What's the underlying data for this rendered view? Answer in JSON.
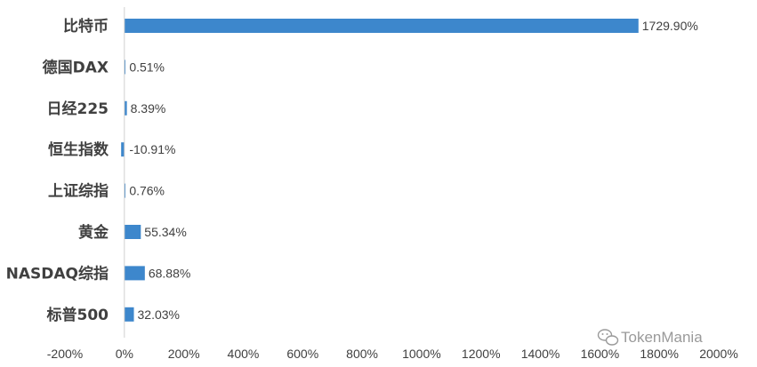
{
  "chart_data": {
    "type": "bar",
    "orientation": "horizontal",
    "categories": [
      "比特币",
      "德国DAX",
      "日经225",
      "恒生指数",
      "上证综指",
      "黄金",
      "NASDAQ综指",
      "标普500"
    ],
    "values": [
      1729.9,
      0.51,
      8.39,
      -10.91,
      0.76,
      55.34,
      68.88,
      32.03
    ],
    "data_labels": [
      "1729.90%",
      "0.51%",
      "8.39%",
      "-10.91%",
      "0.76%",
      "55.34%",
      "68.88%",
      "32.03%"
    ],
    "xlim": [
      -200,
      2000
    ],
    "x_ticks": [
      -200,
      0,
      200,
      400,
      600,
      800,
      1000,
      1200,
      1400,
      1600,
      1800,
      2000
    ],
    "x_tick_labels": [
      "-200%",
      "0%",
      "200%",
      "400%",
      "600%",
      "800%",
      "1000%",
      "1200%",
      "1400%",
      "1600%",
      "1800%",
      "2000%"
    ],
    "bar_color": "#3d87cc",
    "grid": false,
    "legend": "none",
    "title": "",
    "xlabel": "",
    "ylabel": ""
  },
  "watermark": {
    "text": "TokenMania",
    "icon": "wechat-icon"
  }
}
